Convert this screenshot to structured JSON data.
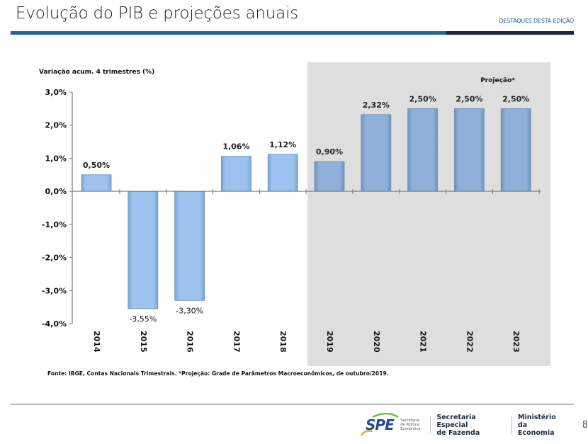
{
  "header": {
    "title": "Evolução do PIB e projeções anuais",
    "section_tag": "DESTAQUES DESTA EDIÇÃO",
    "bar_color": "#24669a",
    "bar_dark_color": "#142b44"
  },
  "chart_data": {
    "type": "bar",
    "title": "",
    "ylabel": "Variação acum. 4 trimestres (%)",
    "xlabel": "",
    "categories": [
      "2014",
      "2015",
      "2016",
      "2017",
      "2018",
      "2019",
      "2020",
      "2021",
      "2022",
      "2023"
    ],
    "values": [
      0.5,
      -3.55,
      -3.3,
      1.06,
      1.12,
      0.9,
      2.32,
      2.5,
      2.5,
      2.5
    ],
    "data_labels": [
      "0,50%",
      "-3,55%",
      "-3,30%",
      "1,06%",
      "1,12%",
      "0,90%",
      "2,32%",
      "2,50%",
      "2,50%",
      "2,50%"
    ],
    "ylim": [
      -4.0,
      3.0
    ],
    "yticks": [
      3.0,
      2.0,
      1.0,
      0.0,
      -1.0,
      -2.0,
      -3.0,
      -4.0
    ],
    "ytick_labels": [
      "3,0%",
      "2,0%",
      "1,0%",
      "0,0%",
      "-1,0%",
      "-2,0%",
      "-3,0%",
      "-4,0%"
    ],
    "grid": false,
    "projection_region": {
      "label": "Projeção*",
      "from_category": "2019",
      "to_category": "2023",
      "shade_color": "#dedede"
    },
    "colors": {
      "historical_bar": "#9cc3f0",
      "projection_bar": "#8fb0d8",
      "bar_edge": "#6a8fb8"
    },
    "source_note": "Fonte: IBGE, Contas Nacionais Trimestrais.  *Projeção:  Grade de Parâmetros Macroeconômicos, de outubro/2019."
  },
  "footer": {
    "logo_text": "SPE",
    "logo_subtitle_lines": [
      "Secretaria",
      "de Política",
      "Econômica"
    ],
    "org1_lines": [
      "Secretaria Especial",
      "de Fazenda"
    ],
    "org2_lines": [
      "Ministério",
      "da Economia"
    ],
    "page_number": "8"
  }
}
